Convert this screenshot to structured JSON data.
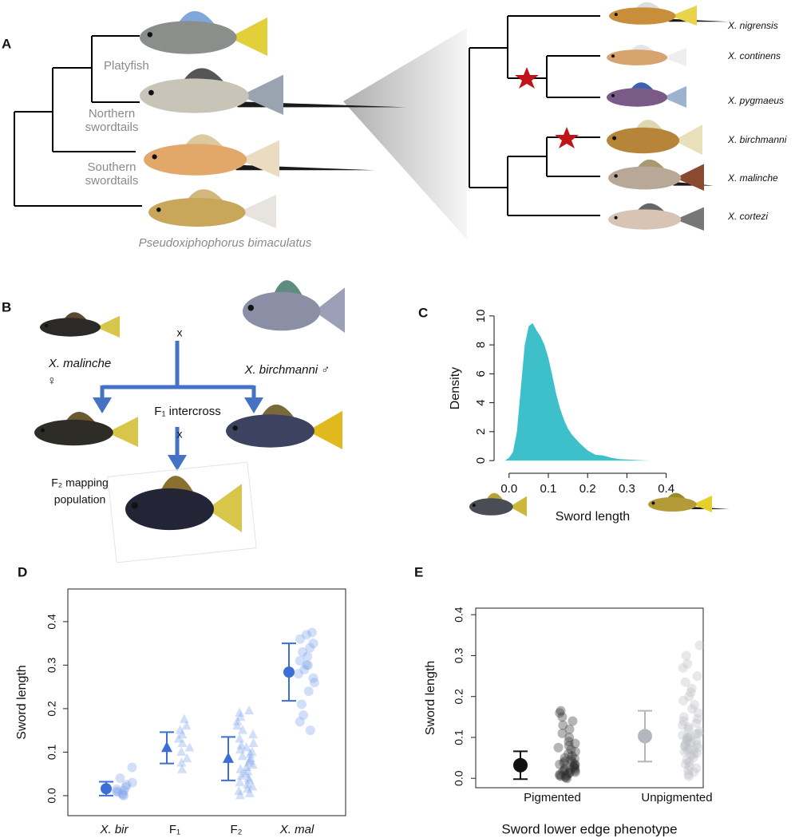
{
  "panel_labels": [
    "A",
    "B",
    "C",
    "D",
    "E"
  ],
  "panel_a": {
    "clades": [
      [
        "Platyfish"
      ],
      [
        "Northern",
        "swordtails"
      ],
      [
        "Southern",
        "swordtails"
      ]
    ],
    "outgroup": "Pseudoxiphophorus bimaculatus",
    "species": [
      "X. nigrensis",
      "X. continens",
      "X. pygmaeus",
      "X. birchmanni",
      "X. malinche",
      "X. cortezi"
    ]
  },
  "panel_b": {
    "female": "X. malinche",
    "female_symbol": "♀",
    "male": "X. birchmanni ♂",
    "cross_1": "x",
    "intercross": "F₁ intercross",
    "cross_2": "x",
    "mapping": [
      "F₂ mapping",
      "population"
    ]
  },
  "chart_data": [
    {
      "type": "area",
      "color": "#3ec0cb",
      "xlabel": "Sword length",
      "ylabel": "Density",
      "x": [
        -0.01,
        0.0,
        0.01,
        0.02,
        0.03,
        0.04,
        0.05,
        0.06,
        0.07,
        0.08,
        0.09,
        0.1,
        0.11,
        0.12,
        0.13,
        0.14,
        0.15,
        0.16,
        0.18,
        0.2,
        0.22,
        0.24,
        0.26,
        0.28,
        0.3,
        0.32,
        0.34,
        0.36
      ],
      "y": [
        0,
        0.2,
        0.6,
        2.0,
        5.0,
        8.0,
        9.3,
        9.5,
        9.0,
        8.6,
        8.0,
        7.1,
        5.9,
        4.6,
        3.6,
        2.8,
        2.2,
        1.8,
        1.2,
        0.7,
        0.4,
        0.35,
        0.2,
        0.1,
        0.08,
        0.05,
        0.02,
        0
      ],
      "xlim": [
        -0.03,
        0.415
      ],
      "ylim": [
        -0.6,
        10.6
      ],
      "xticks": [
        {
          "value": 0,
          "label": "0.0"
        },
        0.1,
        0.2,
        0.3,
        0.4
      ],
      "yticks": [
        0,
        2,
        4,
        6,
        8,
        10
      ]
    },
    {
      "type": "strip",
      "ylabel": "Sword length",
      "ylim": [
        -0.046,
        0.475
      ],
      "yticks": [
        {
          "value": 0,
          "label": "0.0"
        },
        0.1,
        0.2,
        0.3,
        0.4
      ],
      "groups": [
        {
          "name": "X. bir",
          "marker": "circle",
          "color": "#3b6fd6",
          "point_color": "#7fa3ec",
          "mean": 0.016,
          "error": 0.016,
          "points": [
            0.0,
            0.002,
            0.005,
            0.008,
            0.01,
            0.012,
            0.015,
            0.02,
            0.025,
            0.03,
            0.04,
            0.065
          ]
        },
        {
          "name": "F₁",
          "marker": "triangle",
          "color": "#3b6fd6",
          "point_color": "#7fa3ec",
          "mean": 0.11,
          "error": 0.036,
          "points": [
            0.06,
            0.075,
            0.085,
            0.1,
            0.11,
            0.12,
            0.13,
            0.14,
            0.15,
            0.16,
            0.175
          ]
        },
        {
          "name": "F₂",
          "marker": "triangle",
          "color": "#3b6fd6",
          "point_color": "#7fa3ec",
          "mean": 0.085,
          "error": 0.05,
          "points": [
            0.0,
            0.005,
            0.01,
            0.015,
            0.02,
            0.025,
            0.03,
            0.035,
            0.04,
            0.045,
            0.05,
            0.055,
            0.06,
            0.065,
            0.07,
            0.075,
            0.08,
            0.085,
            0.09,
            0.095,
            0.1,
            0.105,
            0.11,
            0.115,
            0.12,
            0.13,
            0.14,
            0.15,
            0.16,
            0.17,
            0.18,
            0.19,
            0.195
          ]
        },
        {
          "name": "X. mal",
          "marker": "circle",
          "color": "#3b6fd6",
          "point_color": "#7fa3ec",
          "mean": 0.284,
          "error": 0.066,
          "points": [
            0.15,
            0.17,
            0.185,
            0.21,
            0.24,
            0.26,
            0.27,
            0.28,
            0.29,
            0.3,
            0.3,
            0.31,
            0.32,
            0.33,
            0.34,
            0.35,
            0.36,
            0.37,
            0.375
          ]
        }
      ]
    },
    {
      "type": "strip",
      "ylabel": "Sword length",
      "xlabel": "Sword lower edge phenotype",
      "ylim": [
        -0.023,
        0.416
      ],
      "yticks": [
        {
          "value": 0,
          "label": "0.0"
        },
        0.1,
        0.2,
        0.3,
        0.4
      ],
      "groups": [
        {
          "name": "Pigmented",
          "marker": "circle",
          "color": "#111111",
          "point_color": "#2a2a2a",
          "mean": 0.032,
          "error": 0.034,
          "points": [
            0.0,
            0.002,
            0.004,
            0.005,
            0.007,
            0.008,
            0.01,
            0.012,
            0.014,
            0.015,
            0.017,
            0.019,
            0.02,
            0.022,
            0.024,
            0.025,
            0.027,
            0.03,
            0.032,
            0.034,
            0.035,
            0.038,
            0.04,
            0.042,
            0.045,
            0.048,
            0.05,
            0.055,
            0.06,
            0.065,
            0.07,
            0.075,
            0.08,
            0.085,
            0.09,
            0.1,
            0.11,
            0.12,
            0.13,
            0.14,
            0.15,
            0.16,
            0.165
          ]
        },
        {
          "name": "Unpigmented",
          "marker": "circle",
          "color": "#b3b6bd",
          "point_color": "#b9bcc4",
          "mean": 0.103,
          "error": 0.062,
          "points": [
            0.005,
            0.01,
            0.015,
            0.02,
            0.025,
            0.03,
            0.035,
            0.04,
            0.045,
            0.05,
            0.055,
            0.06,
            0.062,
            0.065,
            0.068,
            0.07,
            0.072,
            0.075,
            0.078,
            0.08,
            0.082,
            0.085,
            0.088,
            0.09,
            0.092,
            0.095,
            0.098,
            0.1,
            0.102,
            0.105,
            0.108,
            0.11,
            0.115,
            0.12,
            0.125,
            0.13,
            0.135,
            0.14,
            0.145,
            0.15,
            0.16,
            0.17,
            0.18,
            0.19,
            0.2,
            0.21,
            0.22,
            0.235,
            0.25,
            0.27,
            0.28,
            0.3,
            0.325
          ]
        }
      ]
    }
  ]
}
